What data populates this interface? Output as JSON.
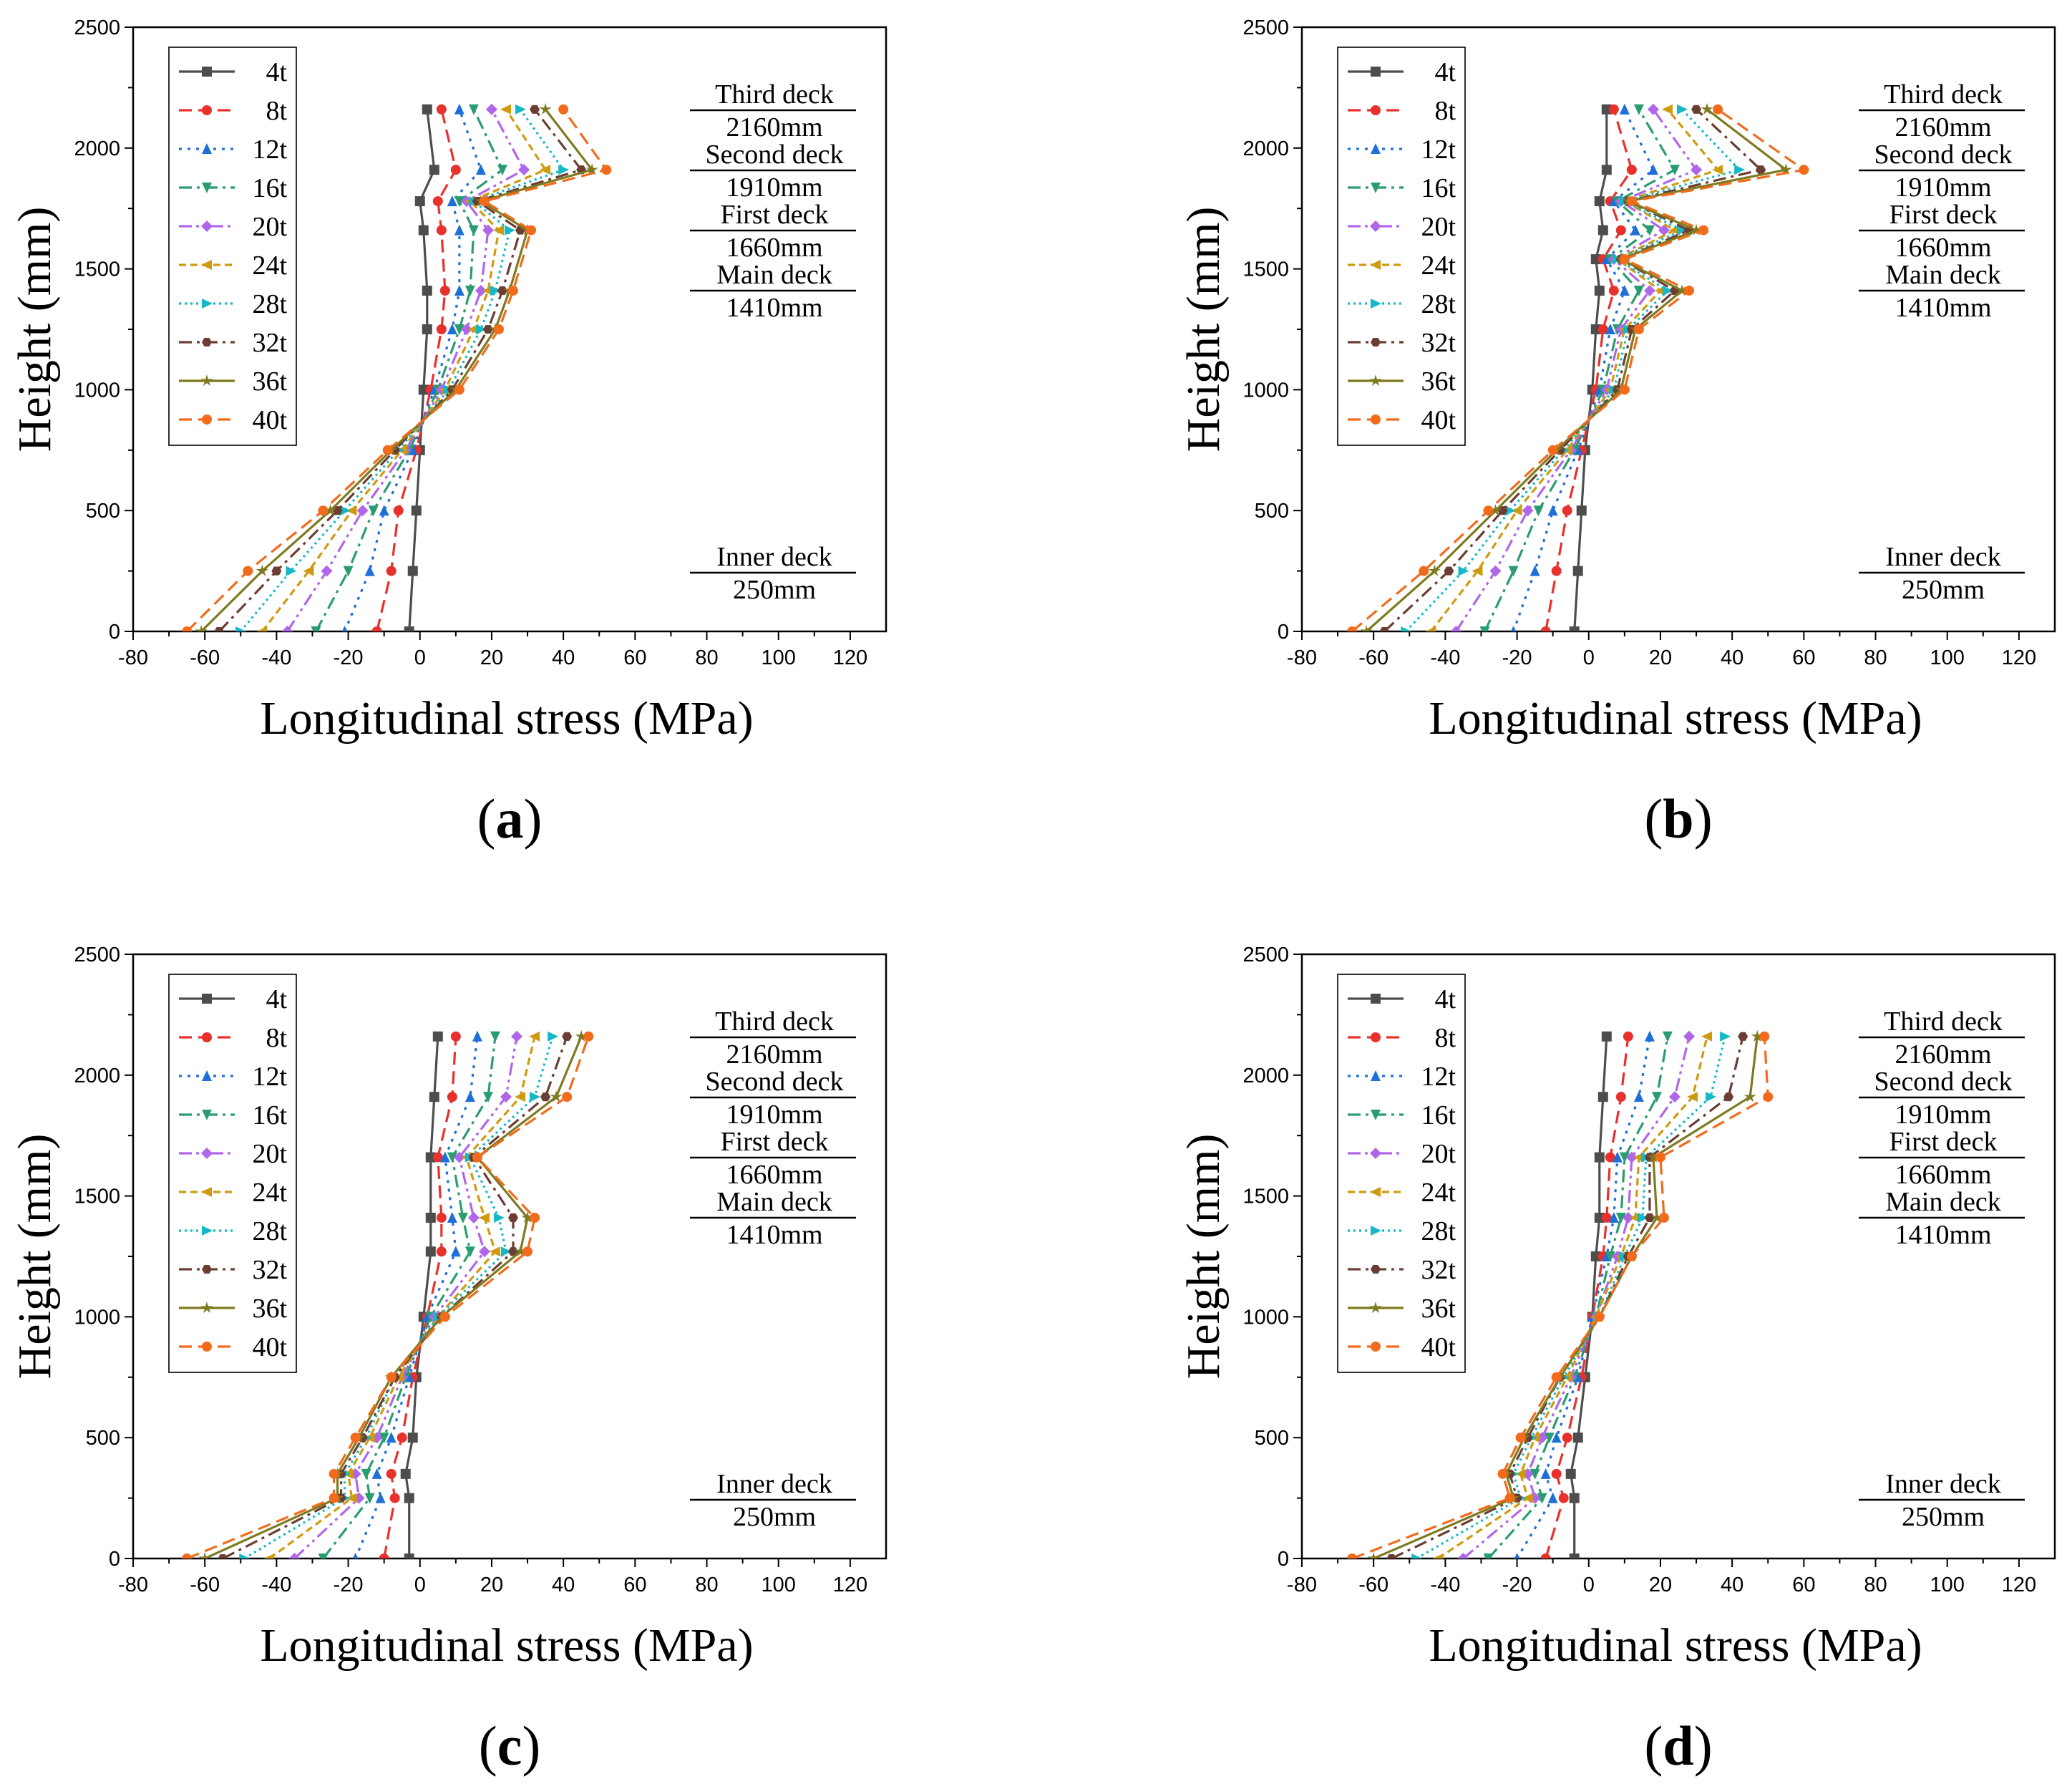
{
  "chart_data": [
    {
      "type": "line",
      "panel_label": "a",
      "xlabel": "Longitudinal stress (MPa)",
      "ylabel": "Height (mm)",
      "xlim": [
        -80,
        130
      ],
      "ylim": [
        0,
        2500
      ],
      "xticks": [
        "-80",
        "-60",
        "-40",
        "-20",
        "0",
        "20",
        "40",
        "60",
        "80",
        "100",
        "120"
      ],
      "yticks": [
        "0",
        "500",
        "1000",
        "1500",
        "2000",
        "2500"
      ],
      "legend_position": "top-left",
      "deck_annotations": [
        {
          "name": "Third deck",
          "height_label": "2160mm"
        },
        {
          "name": "Second deck",
          "height_label": "1910mm"
        },
        {
          "name": "First deck",
          "height_label": "1660mm"
        },
        {
          "name": "Main deck",
          "height_label": "1410mm"
        },
        {
          "name": "Inner deck",
          "height_label": "250mm"
        }
      ],
      "y": [
        0,
        250,
        500,
        750,
        1000,
        1250,
        1410,
        1660,
        1780,
        1910,
        2160
      ],
      "series": [
        {
          "name": "4t",
          "values": [
            -3,
            -2,
            -1,
            0,
            1,
            2,
            2,
            1,
            0,
            4,
            2
          ]
        },
        {
          "name": "8t",
          "values": [
            -12,
            -8,
            -6,
            -1,
            3,
            6,
            7,
            6,
            5,
            10,
            6
          ]
        },
        {
          "name": "12t",
          "values": [
            -21,
            -14,
            -10,
            -2,
            4,
            9,
            11,
            11,
            9,
            17,
            11
          ]
        },
        {
          "name": "16t",
          "values": [
            -29,
            -20,
            -13,
            -3,
            5,
            11,
            14,
            15,
            11,
            23,
            15
          ]
        },
        {
          "name": "20t",
          "values": [
            -37,
            -26,
            -16,
            -4,
            6,
            13,
            17,
            19,
            13,
            29,
            20
          ]
        },
        {
          "name": "24t",
          "values": [
            -44,
            -31,
            -19,
            -5,
            7,
            15,
            19,
            22,
            14,
            35,
            24
          ]
        },
        {
          "name": "28t",
          "values": [
            -50,
            -36,
            -21,
            -6,
            8,
            17,
            21,
            25,
            15,
            40,
            28
          ]
        },
        {
          "name": "32t",
          "values": [
            -56,
            -40,
            -23,
            -7,
            9,
            19,
            23,
            28,
            16,
            45,
            32
          ]
        },
        {
          "name": "36t",
          "values": [
            -61,
            -44,
            -25,
            -8,
            10,
            21,
            25,
            30,
            17,
            48,
            35
          ]
        },
        {
          "name": "40t",
          "values": [
            -65,
            -48,
            -27,
            -9,
            11,
            22,
            26,
            31,
            18,
            52,
            40
          ]
        }
      ]
    },
    {
      "type": "line",
      "panel_label": "b",
      "xlabel": "Longitudinal stress (MPa)",
      "ylabel": "Height (mm)",
      "xlim": [
        -80,
        130
      ],
      "ylim": [
        0,
        2500
      ],
      "xticks": [
        "-80",
        "-60",
        "-40",
        "-20",
        "0",
        "20",
        "40",
        "60",
        "80",
        "100",
        "120"
      ],
      "yticks": [
        "0",
        "500",
        "1000",
        "1500",
        "2000",
        "2500"
      ],
      "legend_position": "top-left",
      "deck_annotations": [
        {
          "name": "Third deck",
          "height_label": "2160mm"
        },
        {
          "name": "Second deck",
          "height_label": "1910mm"
        },
        {
          "name": "First deck",
          "height_label": "1660mm"
        },
        {
          "name": "Main deck",
          "height_label": "1410mm"
        },
        {
          "name": "Inner deck",
          "height_label": "250mm"
        }
      ],
      "y": [
        0,
        250,
        500,
        750,
        1000,
        1250,
        1410,
        1540,
        1660,
        1780,
        1910,
        2160
      ],
      "series": [
        {
          "name": "4t",
          "values": [
            -4,
            -3,
            -2,
            -1,
            1,
            2,
            3,
            2,
            4,
            3,
            5,
            5
          ]
        },
        {
          "name": "8t",
          "values": [
            -12,
            -9,
            -6,
            -2,
            2,
            4,
            7,
            4,
            9,
            6,
            12,
            7
          ]
        },
        {
          "name": "12t",
          "values": [
            -21,
            -15,
            -10,
            -3,
            3,
            6,
            10,
            5,
            13,
            7,
            18,
            10
          ]
        },
        {
          "name": "16t",
          "values": [
            -29,
            -21,
            -14,
            -4,
            4,
            8,
            14,
            6,
            17,
            8,
            24,
            14
          ]
        },
        {
          "name": "20t",
          "values": [
            -37,
            -26,
            -17,
            -5,
            5,
            9,
            17,
            7,
            21,
            9,
            30,
            18
          ]
        },
        {
          "name": "24t",
          "values": [
            -44,
            -31,
            -20,
            -6,
            6,
            10,
            20,
            8,
            24,
            10,
            36,
            22
          ]
        },
        {
          "name": "28t",
          "values": [
            -51,
            -35,
            -22,
            -7,
            7,
            11,
            22,
            8,
            26,
            10,
            42,
            26
          ]
        },
        {
          "name": "32t",
          "values": [
            -57,
            -39,
            -24,
            -8,
            8,
            12,
            24,
            9,
            28,
            11,
            48,
            30
          ]
        },
        {
          "name": "36t",
          "values": [
            -62,
            -43,
            -26,
            -9,
            9,
            13,
            26,
            9,
            30,
            11,
            55,
            33
          ]
        },
        {
          "name": "40t",
          "values": [
            -66,
            -46,
            -28,
            -10,
            10,
            14,
            28,
            10,
            32,
            12,
            60,
            36
          ]
        }
      ]
    },
    {
      "type": "line",
      "panel_label": "c",
      "xlabel": "Longitudinal stress (MPa)",
      "ylabel": "Height (mm)",
      "xlim": [
        -80,
        130
      ],
      "ylim": [
        0,
        2500
      ],
      "xticks": [
        "-80",
        "-60",
        "-40",
        "-20",
        "0",
        "20",
        "40",
        "60",
        "80",
        "100",
        "120"
      ],
      "yticks": [
        "0",
        "500",
        "1000",
        "1500",
        "2000",
        "2500"
      ],
      "legend_position": "top-left",
      "deck_annotations": [
        {
          "name": "Third deck",
          "height_label": "2160mm"
        },
        {
          "name": "Second deck",
          "height_label": "1910mm"
        },
        {
          "name": "First deck",
          "height_label": "1660mm"
        },
        {
          "name": "Main deck",
          "height_label": "1410mm"
        },
        {
          "name": "Inner deck",
          "height_label": "250mm"
        }
      ],
      "y": [
        0,
        250,
        350,
        500,
        750,
        1000,
        1270,
        1410,
        1660,
        1910,
        2160
      ],
      "series": [
        {
          "name": "4t",
          "values": [
            -3,
            -3,
            -4,
            -2,
            -1,
            1,
            3,
            3,
            3,
            4,
            5
          ]
        },
        {
          "name": "8t",
          "values": [
            -10,
            -7,
            -8,
            -5,
            -2,
            2,
            6,
            6,
            5,
            9,
            10
          ]
        },
        {
          "name": "12t",
          "values": [
            -18,
            -11,
            -12,
            -8,
            -3,
            2,
            10,
            9,
            7,
            14,
            16
          ]
        },
        {
          "name": "16t",
          "values": [
            -27,
            -14,
            -15,
            -10,
            -4,
            3,
            14,
            12,
            9,
            19,
            21
          ]
        },
        {
          "name": "20t",
          "values": [
            -35,
            -17,
            -18,
            -12,
            -5,
            4,
            18,
            15,
            11,
            24,
            27
          ]
        },
        {
          "name": "24t",
          "values": [
            -42,
            -19,
            -20,
            -14,
            -6,
            5,
            21,
            18,
            13,
            28,
            32
          ]
        },
        {
          "name": "28t",
          "values": [
            -49,
            -21,
            -21,
            -15,
            -7,
            5,
            24,
            22,
            14,
            32,
            37
          ]
        },
        {
          "name": "32t",
          "values": [
            -55,
            -22,
            -22,
            -16,
            -7,
            6,
            26,
            26,
            15,
            35,
            41
          ]
        },
        {
          "name": "36t",
          "values": [
            -60,
            -23,
            -23,
            -17,
            -8,
            6,
            28,
            30,
            16,
            38,
            45
          ]
        },
        {
          "name": "40t",
          "values": [
            -65,
            -24,
            -24,
            -18,
            -8,
            7,
            30,
            32,
            16,
            41,
            47
          ]
        }
      ]
    },
    {
      "type": "line",
      "panel_label": "d",
      "xlabel": "Longitudinal stress (MPa)",
      "ylabel": "Height (mm)",
      "xlim": [
        -80,
        130
      ],
      "ylim": [
        0,
        2500
      ],
      "xticks": [
        "-80",
        "-60",
        "-40",
        "-20",
        "0",
        "20",
        "40",
        "60",
        "80",
        "100",
        "120"
      ],
      "yticks": [
        "0",
        "500",
        "1000",
        "1500",
        "2000",
        "2500"
      ],
      "legend_position": "top-left",
      "deck_annotations": [
        {
          "name": "Third deck",
          "height_label": "2160mm"
        },
        {
          "name": "Second deck",
          "height_label": "1910mm"
        },
        {
          "name": "First deck",
          "height_label": "1660mm"
        },
        {
          "name": "Main deck",
          "height_label": "1410mm"
        },
        {
          "name": "Inner deck",
          "height_label": "250mm"
        }
      ],
      "y": [
        0,
        250,
        350,
        500,
        750,
        1000,
        1250,
        1410,
        1660,
        1910,
        2160
      ],
      "series": [
        {
          "name": "4t",
          "values": [
            -4,
            -4,
            -5,
            -3,
            -1,
            1,
            2,
            3,
            3,
            4,
            5
          ]
        },
        {
          "name": "8t",
          "values": [
            -12,
            -7,
            -9,
            -6,
            -2,
            1,
            4,
            5,
            6,
            9,
            11
          ]
        },
        {
          "name": "12t",
          "values": [
            -20,
            -10,
            -12,
            -9,
            -3,
            1,
            5,
            7,
            8,
            14,
            17
          ]
        },
        {
          "name": "16t",
          "values": [
            -28,
            -13,
            -15,
            -11,
            -4,
            2,
            6,
            9,
            10,
            19,
            22
          ]
        },
        {
          "name": "20t",
          "values": [
            -35,
            -15,
            -17,
            -13,
            -5,
            2,
            8,
            11,
            12,
            24,
            28
          ]
        },
        {
          "name": "24t",
          "values": [
            -42,
            -17,
            -19,
            -15,
            -6,
            2,
            9,
            13,
            14,
            29,
            33
          ]
        },
        {
          "name": "28t",
          "values": [
            -48,
            -19,
            -21,
            -16,
            -7,
            3,
            10,
            15,
            16,
            34,
            38
          ]
        },
        {
          "name": "32t",
          "values": [
            -55,
            -20,
            -22,
            -17,
            -8,
            3,
            11,
            17,
            17,
            39,
            43
          ]
        },
        {
          "name": "36t",
          "values": [
            -60,
            -21,
            -23,
            -18,
            -8,
            3,
            12,
            19,
            18,
            45,
            47
          ]
        },
        {
          "name": "40t",
          "values": [
            -66,
            -22,
            -24,
            -19,
            -9,
            3,
            12,
            21,
            20,
            50,
            49
          ]
        }
      ]
    }
  ],
  "series_styles": [
    {
      "color": "#4d4d4d",
      "dash": "",
      "marker": "square"
    },
    {
      "color": "#e8302c",
      "dash": "dash",
      "marker": "circle"
    },
    {
      "color": "#1f6fd8",
      "dash": "dot",
      "marker": "triangle-up"
    },
    {
      "color": "#2a9d6f",
      "dash": "dashdot",
      "marker": "triangle-down"
    },
    {
      "color": "#b066e8",
      "dash": "dashdotdot",
      "marker": "diamond"
    },
    {
      "color": "#d09a0f",
      "dash": "shortdash",
      "marker": "triangle-left"
    },
    {
      "color": "#16b8c8",
      "dash": "shortdot",
      "marker": "triangle-right"
    },
    {
      "color": "#6b3d33",
      "dash": "dashdot",
      "marker": "hexagon"
    },
    {
      "color": "#7d7a1f",
      "dash": "",
      "marker": "star"
    },
    {
      "color": "#f26b1d",
      "dash": "dash",
      "marker": "circle"
    }
  ]
}
